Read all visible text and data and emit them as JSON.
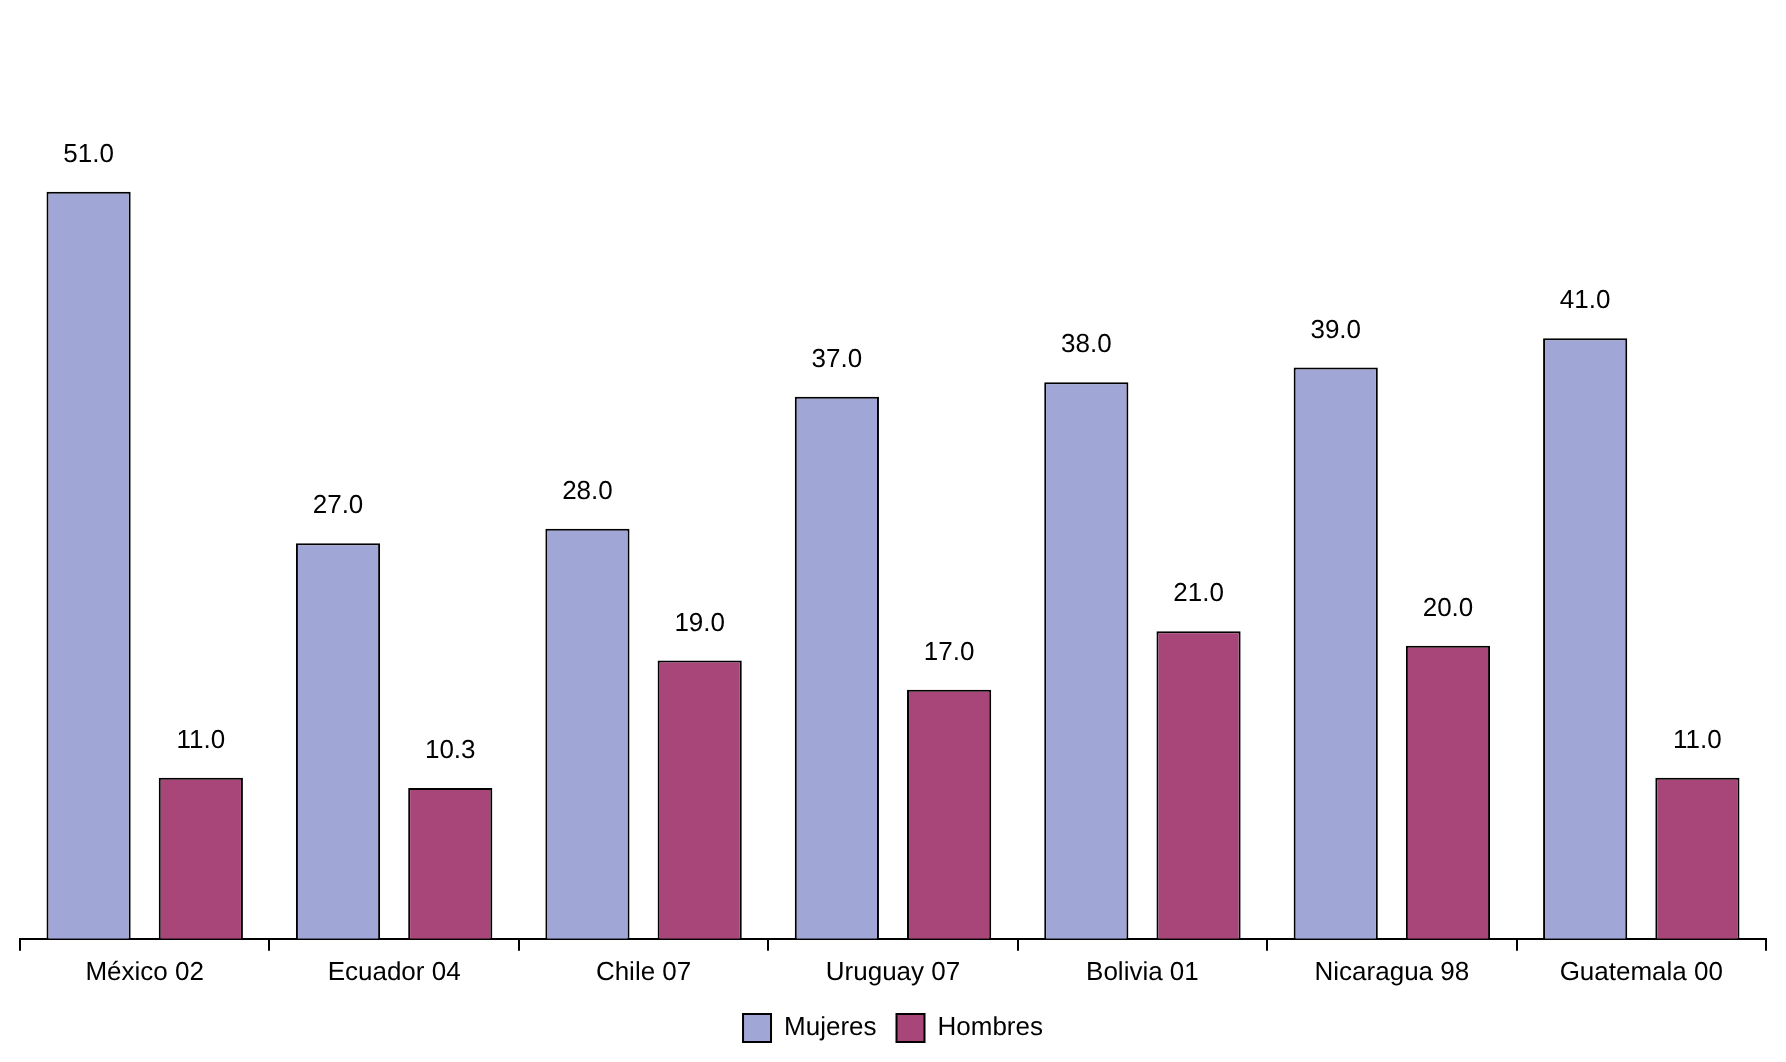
{
  "chart_data": {
    "type": "bar",
    "categories": [
      "México 02",
      "Ecuador 04",
      "Chile 07",
      "Uruguay 07",
      "Bolivia 01",
      "Nicaragua 98",
      "Guatemala 00"
    ],
    "series": [
      {
        "name": "Mujeres",
        "color": "#a0a6d6",
        "values": [
          51.0,
          27.0,
          28.0,
          37.0,
          38.0,
          39.0,
          41.0
        ],
        "value_labels": [
          "51.0",
          "27.0",
          "28.0",
          "37.0",
          "38.0",
          "39.0",
          "41.0"
        ]
      },
      {
        "name": "Hombres",
        "color": "#a8467a",
        "values": [
          11.0,
          10.3,
          19.0,
          17.0,
          21.0,
          20.0,
          11.0
        ],
        "value_labels": [
          "11.0",
          "10.3",
          "19.0",
          "17.0",
          "21.0",
          "20.0",
          "11.0"
        ]
      }
    ],
    "legend": "bottom",
    "grid": false
  }
}
